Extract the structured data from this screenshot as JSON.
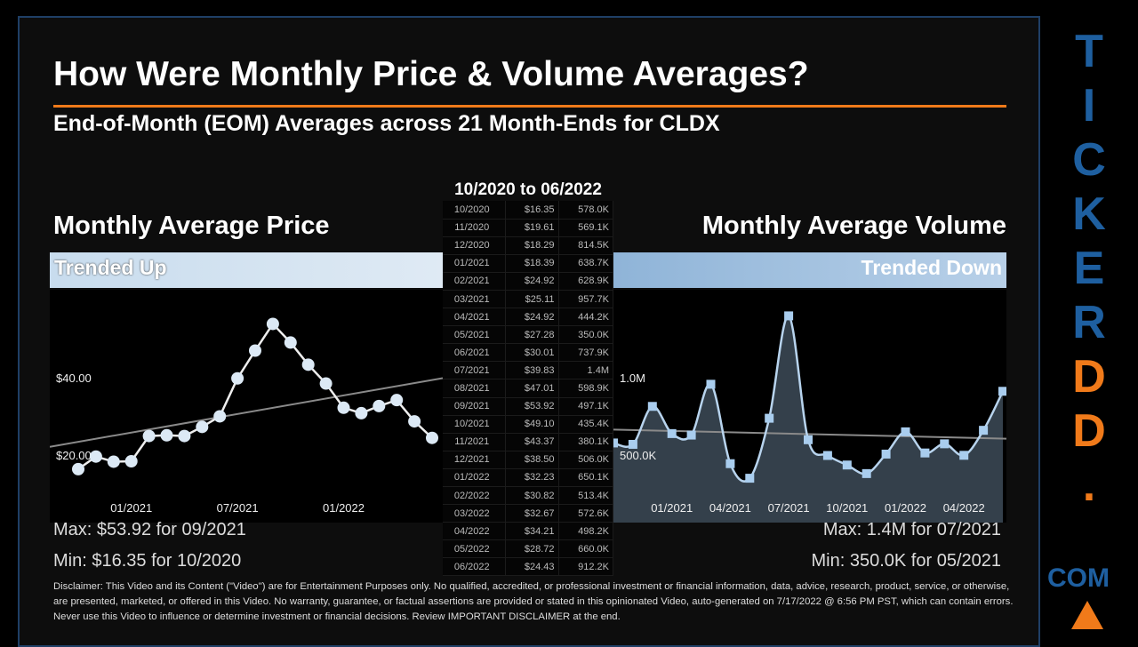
{
  "title": "How Were Monthly Price & Volume Averages?",
  "subtitle": "End-of-Month (EOM) Averages across 21 Month-Ends for CLDX",
  "table": {
    "header": "10/2020 to 06/2022",
    "rows": [
      [
        "10/2020",
        "$16.35",
        "578.0K"
      ],
      [
        "11/2020",
        "$19.61",
        "569.1K"
      ],
      [
        "12/2020",
        "$18.29",
        "814.5K"
      ],
      [
        "01/2021",
        "$18.39",
        "638.7K"
      ],
      [
        "02/2021",
        "$24.92",
        "628.9K"
      ],
      [
        "03/2021",
        "$25.11",
        "957.7K"
      ],
      [
        "04/2021",
        "$24.92",
        "444.2K"
      ],
      [
        "05/2021",
        "$27.28",
        "350.0K"
      ],
      [
        "06/2021",
        "$30.01",
        "737.9K"
      ],
      [
        "07/2021",
        "$39.83",
        "1.4M"
      ],
      [
        "08/2021",
        "$47.01",
        "598.9K"
      ],
      [
        "09/2021",
        "$53.92",
        "497.1K"
      ],
      [
        "10/2021",
        "$49.10",
        "435.4K"
      ],
      [
        "11/2021",
        "$43.37",
        "380.1K"
      ],
      [
        "12/2021",
        "$38.50",
        "506.0K"
      ],
      [
        "01/2022",
        "$32.23",
        "650.1K"
      ],
      [
        "02/2022",
        "$30.82",
        "513.4K"
      ],
      [
        "03/2022",
        "$32.67",
        "572.6K"
      ],
      [
        "04/2022",
        "$34.21",
        "498.2K"
      ],
      [
        "05/2022",
        "$28.72",
        "660.0K"
      ],
      [
        "06/2022",
        "$24.43",
        "912.2K"
      ]
    ]
  },
  "price": {
    "heading": "Monthly Average Price",
    "trend": "Trended Up",
    "max": "Max: $53.92 for 09/2021",
    "min": "Min: $16.35 for 10/2020"
  },
  "volume": {
    "heading": "Monthly Average Volume",
    "trend": "Trended Down",
    "max": "Max: 1.4M for 07/2021",
    "min": "Min: 350.0K for 05/2021"
  },
  "chart_data": [
    {
      "type": "line",
      "ytick_labels": [
        "$20.00",
        "$40.00"
      ],
      "yticks": [
        20,
        40
      ],
      "xtick_labels": [
        "01/2021",
        "07/2021",
        "01/2022"
      ],
      "trendline": true,
      "color": "#dce9f5",
      "x": [
        "10/2020",
        "11/2020",
        "12/2020",
        "01/2021",
        "02/2021",
        "03/2021",
        "04/2021",
        "05/2021",
        "06/2021",
        "07/2021",
        "08/2021",
        "09/2021",
        "10/2021",
        "11/2021",
        "12/2021",
        "01/2022",
        "02/2022",
        "03/2022",
        "04/2022",
        "05/2022",
        "06/2022"
      ],
      "values": [
        16.35,
        19.61,
        18.29,
        18.39,
        24.92,
        25.11,
        24.92,
        27.28,
        30.01,
        39.83,
        47.01,
        53.92,
        49.1,
        43.37,
        38.5,
        32.23,
        30.82,
        32.67,
        34.21,
        28.72,
        24.43
      ]
    },
    {
      "type": "area",
      "ytick_labels": [
        "500.0K",
        "1.0M"
      ],
      "yticks": [
        500000,
        1000000
      ],
      "xtick_labels": [
        "01/2021",
        "04/2021",
        "07/2021",
        "10/2021",
        "01/2022",
        "04/2022"
      ],
      "trendline": true,
      "color": "#a9cdee",
      "x": [
        "10/2020",
        "11/2020",
        "12/2020",
        "01/2021",
        "02/2021",
        "03/2021",
        "04/2021",
        "05/2021",
        "06/2021",
        "07/2021",
        "08/2021",
        "09/2021",
        "10/2021",
        "11/2021",
        "12/2021",
        "01/2022",
        "02/2022",
        "03/2022",
        "04/2022",
        "05/2022",
        "06/2022"
      ],
      "values": [
        578000,
        569100,
        814500,
        638700,
        628900,
        957700,
        444200,
        350000,
        737900,
        1400000,
        598900,
        497100,
        435400,
        380100,
        506000,
        650100,
        513400,
        572600,
        498200,
        660000,
        912200
      ]
    }
  ],
  "disclaimer": "Disclaimer: This Video and its Content (\"Video\") are for Entertainment Purposes only. No qualified, accredited, or professional investment or financial information, data, advice, research, product, service, or otherwise, are presented, marketed, or offered in this Video. No warranty, guarantee, or factual assertions are provided or stated in this opinionated Video, auto-generated on 7/17/2022 @ 6:56 PM PST, which can contain errors. Never use this Video to influence or determine investment or financial decisions. Review IMPORTANT DISCLAIMER at the end.",
  "logo": {
    "letters": [
      "T",
      "I",
      "C",
      "K",
      "E",
      "R",
      "D",
      "D",
      "."
    ],
    "com": "COM"
  }
}
